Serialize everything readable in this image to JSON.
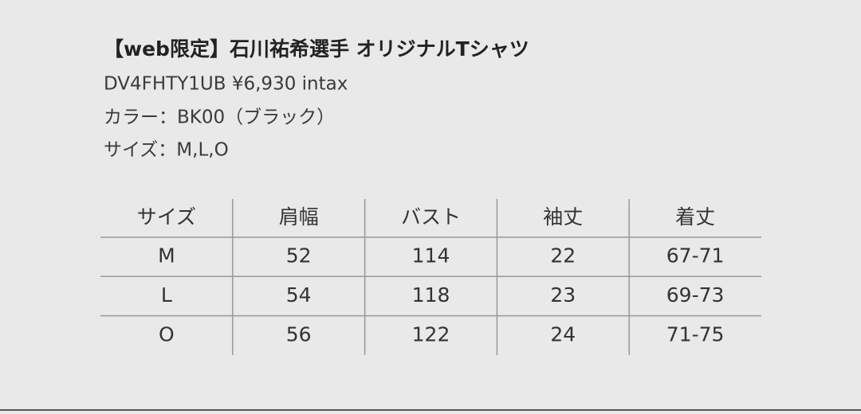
{
  "product": {
    "title": "【web限定】石川祐希選手 オリジナルTシャツ",
    "lines": [
      "DV4FHTY1UB ¥6,930 intax",
      "カラー：BK00（ブラック）",
      "サイズ：M,L,O"
    ]
  },
  "table": {
    "header": [
      "サイズ",
      "肩幅",
      "バスト",
      "袖丈",
      "着丈"
    ],
    "rows": [
      [
        "M",
        "52",
        "114",
        "22",
        "67-71"
      ],
      [
        "L",
        "54",
        "118",
        "23",
        "69-73"
      ],
      [
        "O",
        "56",
        "122",
        "24",
        "71-75"
      ]
    ]
  }
}
